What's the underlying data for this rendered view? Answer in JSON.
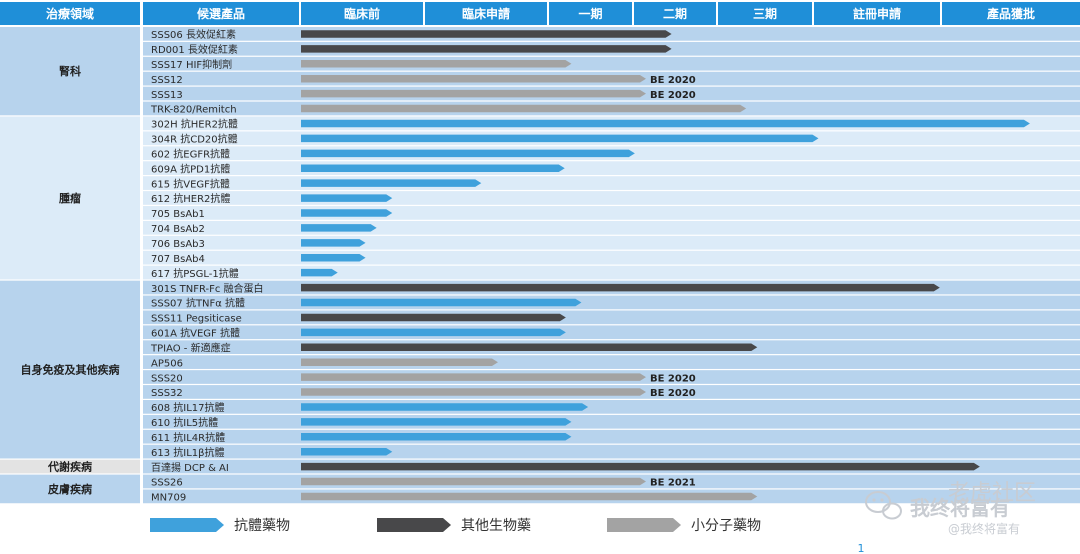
{
  "headers": [
    "治療領域",
    "候選產品",
    "臨床前",
    "臨床申請",
    "一期",
    "二期",
    "三期",
    "註冊申請",
    "產品獲批"
  ],
  "colors": {
    "header_bg": "#1f8fd8",
    "antibody": "#3fa1dc",
    "other_bio": "#48484a",
    "small_molecule": "#a3a3a3",
    "row_band_dark": "#b7d3ed",
    "row_band_light": "#dcebf8",
    "metabolic_area": "#e3e3e3"
  },
  "legend": [
    {
      "label": "抗體藥物",
      "type": "antibody"
    },
    {
      "label": "其他生物藥",
      "type": "other_bio"
    },
    {
      "label": "小分子藥物",
      "type": "small_molecule"
    }
  ],
  "watermark": {
    "line1": "老虎社区",
    "line2": "我终将富有",
    "line3": "@我终将富有"
  },
  "page_number": "1",
  "chart_data": {
    "type": "bar",
    "orientation": "horizontal",
    "stage_axis": [
      "臨床前",
      "臨床申請",
      "一期",
      "二期",
      "三期",
      "註冊申請",
      "產品獲批"
    ],
    "value_unit": "stage position (0 = start of 臨床前, 7 = end of 產品獲批)",
    "areas": [
      {
        "name": "腎科",
        "style": "dark",
        "rows": [
          {
            "product": "SSS06 長效促紅素",
            "type": "other_bio",
            "progress": 3.33,
            "note": ""
          },
          {
            "product": "RD001 長效促紅素",
            "type": "other_bio",
            "progress": 3.33,
            "note": ""
          },
          {
            "product": "SSS17 HIF抑制劑",
            "type": "small_molecule",
            "progress": 2.43,
            "note": ""
          },
          {
            "product": "SSS12",
            "type": "small_molecule",
            "progress": 3.1,
            "note": "BE 2020"
          },
          {
            "product": "SSS13",
            "type": "small_molecule",
            "progress": 3.1,
            "note": "BE 2020"
          },
          {
            "product": "TRK-820/Remitch",
            "type": "small_molecule",
            "progress": 4.0,
            "note": ""
          }
        ]
      },
      {
        "name": "腫瘤",
        "style": "light",
        "rows": [
          {
            "product": "302H 抗HER2抗體",
            "type": "antibody",
            "progress": 6.55,
            "note": ""
          },
          {
            "product": "304R 抗CD20抗體",
            "type": "antibody",
            "progress": 4.65,
            "note": ""
          },
          {
            "product": "602  抗EGFR抗體",
            "type": "antibody",
            "progress": 3.0,
            "note": ""
          },
          {
            "product": "609A 抗PD1抗體",
            "type": "antibody",
            "progress": 2.37,
            "note": ""
          },
          {
            "product": "615  抗VEGF抗體",
            "type": "antibody",
            "progress": 1.62,
            "note": ""
          },
          {
            "product": "612  抗HER2抗體",
            "type": "antibody",
            "progress": 0.82,
            "note": ""
          },
          {
            "product": "705  BsAb1",
            "type": "antibody",
            "progress": 0.82,
            "note": ""
          },
          {
            "product": "704  BsAb2",
            "type": "antibody",
            "progress": 0.68,
            "note": ""
          },
          {
            "product": "706  BsAb3",
            "type": "antibody",
            "progress": 0.58,
            "note": ""
          },
          {
            "product": "707  BsAb4",
            "type": "antibody",
            "progress": 0.58,
            "note": ""
          },
          {
            "product": "617  抗PSGL-1抗體",
            "type": "antibody",
            "progress": 0.33,
            "note": ""
          }
        ]
      },
      {
        "name": "自身免疫及其他疾病",
        "style": "dark",
        "rows": [
          {
            "product": "301S TNFR-Fc 融合蛋白",
            "type": "other_bio",
            "progress": 5.74,
            "note": ""
          },
          {
            "product": "SSS07  抗TNFα 抗體",
            "type": "antibody",
            "progress": 2.52,
            "note": ""
          },
          {
            "product": "SSS11  Pegsiticase",
            "type": "other_bio",
            "progress": 2.38,
            "note": ""
          },
          {
            "product": "601A  抗VEGF 抗體",
            "type": "antibody",
            "progress": 2.38,
            "note": ""
          },
          {
            "product": "TPIAO - 新適應症",
            "type": "other_bio",
            "progress": 4.1,
            "note": ""
          },
          {
            "product": "AP506",
            "type": "small_molecule",
            "progress": 1.77,
            "note": ""
          },
          {
            "product": "SSS20",
            "type": "small_molecule",
            "progress": 3.1,
            "note": "BE 2020"
          },
          {
            "product": "SSS32",
            "type": "small_molecule",
            "progress": 3.1,
            "note": "BE 2020"
          },
          {
            "product": "608  抗IL17抗體",
            "type": "antibody",
            "progress": 2.58,
            "note": ""
          },
          {
            "product": "610  抗IL5抗體",
            "type": "antibody",
            "progress": 2.43,
            "note": ""
          },
          {
            "product": "611  抗IL4R抗體",
            "type": "antibody",
            "progress": 2.43,
            "note": ""
          },
          {
            "product": "613  抗IL1β抗體",
            "type": "antibody",
            "progress": 0.82,
            "note": ""
          }
        ]
      },
      {
        "name": "代謝疾病",
        "style": "metabolic",
        "rows": [
          {
            "product": "百達揚 DCP & AI",
            "type": "other_bio",
            "progress": 6.1,
            "note": ""
          }
        ]
      },
      {
        "name": "皮膚疾病",
        "style": "dark",
        "rows": [
          {
            "product": "SSS26",
            "type": "small_molecule",
            "progress": 3.1,
            "note": "BE 2021"
          },
          {
            "product": "MN709",
            "type": "small_molecule",
            "progress": 4.1,
            "note": ""
          }
        ]
      }
    ]
  }
}
